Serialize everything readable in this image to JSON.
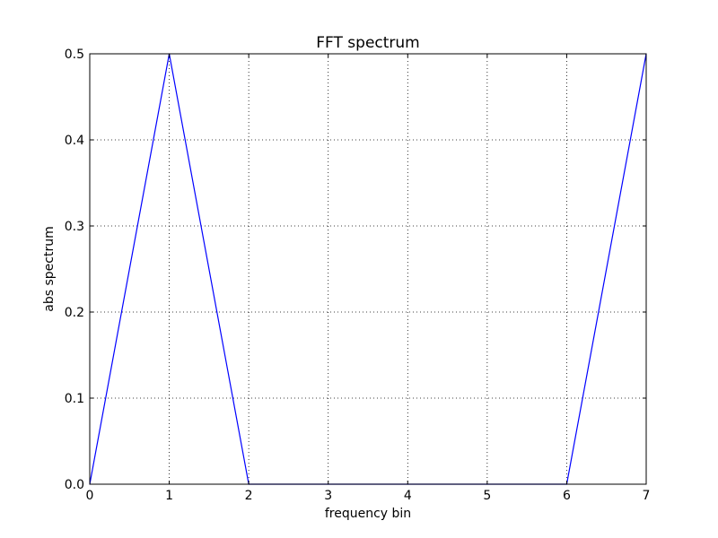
{
  "chart_data": {
    "type": "line",
    "title": "FFT spectrum",
    "xlabel": "frequency bin",
    "ylabel": "abs spectrum",
    "xlim": [
      0,
      7
    ],
    "ylim": [
      0,
      0.5
    ],
    "xticks": [
      "0",
      "1",
      "2",
      "3",
      "4",
      "5",
      "6",
      "7"
    ],
    "yticks": [
      "0.0",
      "0.1",
      "0.2",
      "0.3",
      "0.4",
      "0.5"
    ],
    "grid": true,
    "series": [
      {
        "color": "#0000ff",
        "x": [
          0,
          1,
          2,
          3,
          4,
          5,
          6,
          7
        ],
        "y": [
          0.0,
          0.5,
          0.0,
          0.0,
          0.0,
          0.0,
          0.0,
          0.5
        ]
      }
    ]
  }
}
